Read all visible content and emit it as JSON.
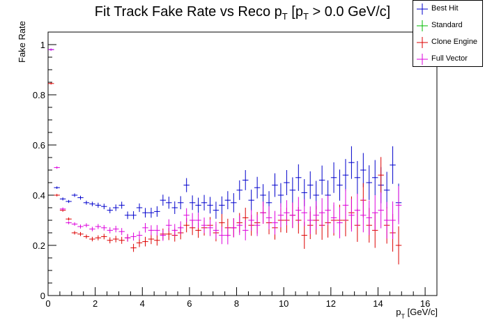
{
  "chart_data": {
    "type": "scatter",
    "title_parts": {
      "a": "Fit Track Fake Rate vs Reco p",
      "b": "T",
      "c": " [p",
      "d": "T",
      "e": " > 0.0 GeV/c]"
    },
    "xlabel_parts": {
      "a": "p",
      "b": "T",
      "c": " [GeV/c]"
    },
    "ylabel": "Fake Rate",
    "xlim": [
      0,
      16.5
    ],
    "ylim": [
      0,
      1.05
    ],
    "x_ticks": [
      "0",
      "2",
      "4",
      "6",
      "8",
      "10",
      "12",
      "14",
      "16"
    ],
    "y_ticks": [
      "0",
      "0.2",
      "0.4",
      "0.6",
      "0.8",
      "1"
    ],
    "bin_width": 0.25,
    "legend": [
      {
        "name": "Best Hit",
        "color": "#0000cc"
      },
      {
        "name": "Standard",
        "color": "#00bb00"
      },
      {
        "name": "Clone Engine",
        "color": "#dd0000"
      },
      {
        "name": "Full Vector",
        "color": "#dd00dd"
      }
    ],
    "series": [
      {
        "name": "Best Hit",
        "color": "#0000cc",
        "x": [
          0.125,
          0.375,
          0.625,
          0.875,
          1.125,
          1.375,
          1.625,
          1.875,
          2.125,
          2.375,
          2.625,
          2.875,
          3.125,
          3.375,
          3.625,
          3.875,
          4.125,
          4.375,
          4.625,
          4.875,
          5.125,
          5.375,
          5.625,
          5.875,
          6.125,
          6.375,
          6.625,
          6.875,
          7.125,
          7.375,
          7.625,
          7.875,
          8.125,
          8.375,
          8.625,
          8.875,
          9.125,
          9.375,
          9.625,
          9.875,
          10.125,
          10.375,
          10.625,
          10.875,
          11.125,
          11.375,
          11.625,
          11.875,
          12.125,
          12.375,
          12.625,
          12.875,
          13.125,
          13.375,
          13.625,
          13.875,
          14.125,
          14.375,
          14.625,
          14.875
        ],
        "y": [
          0.98,
          0.43,
          0.385,
          0.375,
          0.4,
          0.39,
          0.37,
          0.365,
          0.36,
          0.355,
          0.34,
          0.35,
          0.36,
          0.32,
          0.32,
          0.35,
          0.33,
          0.33,
          0.335,
          0.38,
          0.37,
          0.35,
          0.37,
          0.44,
          0.37,
          0.36,
          0.37,
          0.36,
          0.34,
          0.36,
          0.38,
          0.37,
          0.42,
          0.46,
          0.38,
          0.43,
          0.4,
          0.37,
          0.44,
          0.4,
          0.45,
          0.42,
          0.47,
          0.41,
          0.44,
          0.4,
          0.46,
          0.4,
          0.47,
          0.44,
          0.48,
          0.53,
          0.47,
          0.5,
          0.45,
          0.47,
          0.44,
          0.42,
          0.52,
          0.37
        ],
        "err": [
          0.004,
          0.005,
          0.006,
          0.006,
          0.007,
          0.008,
          0.008,
          0.009,
          0.01,
          0.011,
          0.012,
          0.013,
          0.014,
          0.015,
          0.016,
          0.017,
          0.019,
          0.02,
          0.021,
          0.022,
          0.024,
          0.025,
          0.026,
          0.028,
          0.029,
          0.03,
          0.031,
          0.033,
          0.034,
          0.035,
          0.036,
          0.038,
          0.039,
          0.04,
          0.042,
          0.043,
          0.044,
          0.046,
          0.047,
          0.048,
          0.05,
          0.051,
          0.053,
          0.054,
          0.055,
          0.057,
          0.058,
          0.059,
          0.061,
          0.062,
          0.064,
          0.065,
          0.066,
          0.068,
          0.069,
          0.07,
          0.072,
          0.073,
          0.075,
          0.076
        ]
      },
      {
        "name": "Standard",
        "color": "#00bb00",
        "x": [],
        "y": [],
        "err": []
      },
      {
        "name": "Clone Engine",
        "color": "#dd0000",
        "x": [
          0.125,
          0.375,
          0.625,
          0.875,
          1.125,
          1.375,
          1.625,
          1.875,
          2.125,
          2.375,
          2.625,
          2.875,
          3.125,
          3.375,
          3.625,
          3.875,
          4.125,
          4.375,
          4.625,
          4.875,
          5.125,
          5.375,
          5.625,
          5.875,
          6.125,
          6.375,
          6.625,
          6.875,
          7.125,
          7.375,
          7.625,
          7.875,
          8.125,
          8.375,
          8.625,
          8.875,
          9.125,
          9.375,
          9.625,
          9.875,
          10.125,
          10.375,
          10.625,
          10.875,
          11.125,
          11.375,
          11.625,
          11.875,
          12.125,
          12.375,
          12.625,
          12.875,
          13.125,
          13.375,
          13.625,
          13.875,
          14.125,
          14.375,
          14.625,
          14.875
        ],
        "y": [
          0.845,
          0.4,
          0.34,
          0.305,
          0.25,
          0.245,
          0.235,
          0.225,
          0.23,
          0.235,
          0.22,
          0.225,
          0.22,
          0.23,
          0.19,
          0.21,
          0.215,
          0.225,
          0.22,
          0.245,
          0.245,
          0.24,
          0.25,
          0.28,
          0.27,
          0.26,
          0.27,
          0.28,
          0.25,
          0.29,
          0.27,
          0.27,
          0.29,
          0.31,
          0.28,
          0.29,
          0.33,
          0.29,
          0.27,
          0.3,
          0.3,
          0.32,
          0.3,
          0.24,
          0.28,
          0.3,
          0.28,
          0.29,
          0.3,
          0.3,
          0.3,
          0.33,
          0.28,
          0.38,
          0.28,
          0.26,
          0.48,
          0.28,
          0.25,
          0.2
        ],
        "err": [
          0.004,
          0.005,
          0.006,
          0.006,
          0.007,
          0.008,
          0.008,
          0.009,
          0.01,
          0.011,
          0.012,
          0.013,
          0.014,
          0.015,
          0.016,
          0.017,
          0.019,
          0.02,
          0.021,
          0.022,
          0.024,
          0.025,
          0.026,
          0.028,
          0.029,
          0.03,
          0.031,
          0.033,
          0.034,
          0.035,
          0.036,
          0.038,
          0.039,
          0.04,
          0.042,
          0.043,
          0.044,
          0.046,
          0.047,
          0.048,
          0.05,
          0.051,
          0.053,
          0.054,
          0.055,
          0.057,
          0.058,
          0.059,
          0.061,
          0.062,
          0.064,
          0.065,
          0.066,
          0.068,
          0.069,
          0.07,
          0.072,
          0.073,
          0.075,
          0.076
        ]
      },
      {
        "name": "Full Vector",
        "color": "#dd00dd",
        "x": [
          0.125,
          0.375,
          0.625,
          0.875,
          1.125,
          1.375,
          1.625,
          1.875,
          2.125,
          2.375,
          2.625,
          2.875,
          3.125,
          3.375,
          3.625,
          3.875,
          4.125,
          4.375,
          4.625,
          4.875,
          5.125,
          5.375,
          5.625,
          5.875,
          6.125,
          6.375,
          6.625,
          6.875,
          7.125,
          7.375,
          7.625,
          7.875,
          8.125,
          8.375,
          8.625,
          8.875,
          9.125,
          9.375,
          9.625,
          9.875,
          10.125,
          10.375,
          10.625,
          10.875,
          11.125,
          11.375,
          11.625,
          11.875,
          12.125,
          12.375,
          12.625,
          12.875,
          13.125,
          13.375,
          13.625,
          13.875,
          14.125,
          14.375,
          14.625,
          14.875
        ],
        "y": [
          0.98,
          0.51,
          0.345,
          0.29,
          0.285,
          0.275,
          0.28,
          0.265,
          0.275,
          0.27,
          0.26,
          0.265,
          0.255,
          0.23,
          0.235,
          0.24,
          0.27,
          0.26,
          0.26,
          0.24,
          0.28,
          0.26,
          0.27,
          0.32,
          0.3,
          0.3,
          0.28,
          0.27,
          0.26,
          0.24,
          0.24,
          0.27,
          0.28,
          0.26,
          0.3,
          0.28,
          0.33,
          0.31,
          0.29,
          0.32,
          0.33,
          0.32,
          0.34,
          0.33,
          0.3,
          0.32,
          0.33,
          0.34,
          0.31,
          0.29,
          0.36,
          0.32,
          0.34,
          0.32,
          0.31,
          0.33,
          0.34,
          0.3,
          0.3,
          0.36
        ],
        "err": [
          0.004,
          0.005,
          0.006,
          0.006,
          0.007,
          0.008,
          0.008,
          0.009,
          0.01,
          0.011,
          0.012,
          0.013,
          0.014,
          0.015,
          0.016,
          0.017,
          0.019,
          0.02,
          0.021,
          0.022,
          0.024,
          0.025,
          0.026,
          0.028,
          0.029,
          0.03,
          0.031,
          0.033,
          0.034,
          0.035,
          0.036,
          0.038,
          0.039,
          0.04,
          0.042,
          0.043,
          0.044,
          0.046,
          0.047,
          0.048,
          0.05,
          0.051,
          0.053,
          0.054,
          0.055,
          0.057,
          0.058,
          0.059,
          0.061,
          0.062,
          0.064,
          0.065,
          0.066,
          0.068,
          0.069,
          0.07,
          0.072,
          0.073,
          0.075,
          0.076
        ]
      }
    ]
  }
}
